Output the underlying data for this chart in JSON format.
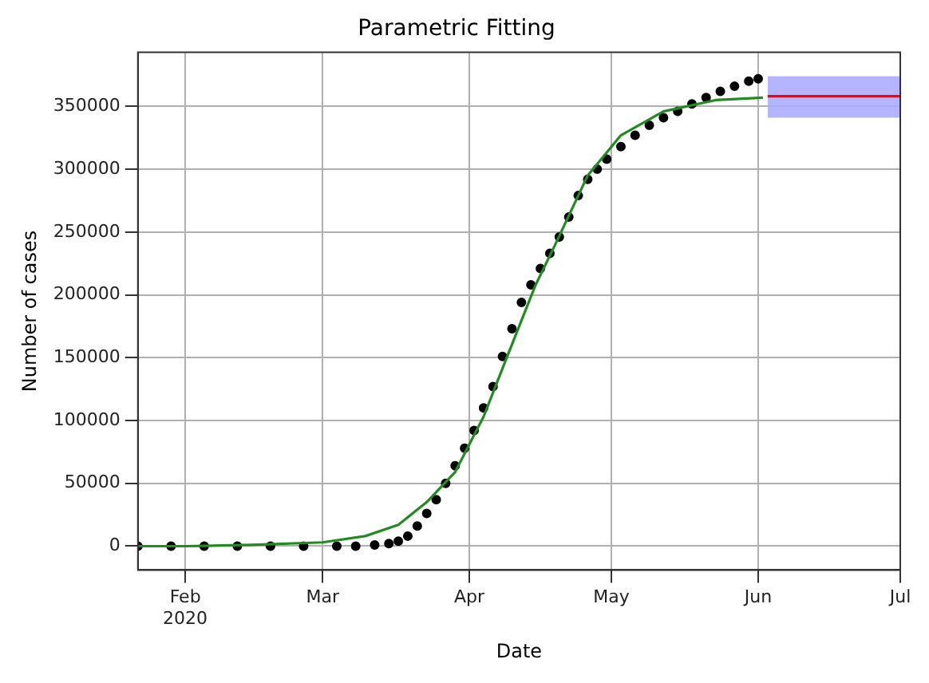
{
  "chart_data": {
    "type": "scatter",
    "title": "Parametric Fitting",
    "xlabel": "Date",
    "ylabel": "Number of cases",
    "xlim": [
      "2020-01-22",
      "2020-07-01"
    ],
    "xticks": [
      {
        "value": "2020-02-01",
        "label": "Feb\n2020"
      },
      {
        "value": "2020-03-01",
        "label": "Mar"
      },
      {
        "value": "2020-04-01",
        "label": "Apr"
      },
      {
        "value": "2020-05-01",
        "label": "May"
      },
      {
        "value": "2020-06-01",
        "label": "Jun"
      },
      {
        "value": "2020-07-01",
        "label": "Jul"
      }
    ],
    "ylim": [
      -19000,
      393000
    ],
    "yticks": [
      0,
      50000,
      100000,
      150000,
      200000,
      250000,
      300000,
      350000
    ],
    "grid": true,
    "legend": false,
    "marker": "circle",
    "series": [
      {
        "type": "scatter",
        "color": "#000000",
        "x": [
          "2020-01-22",
          "2020-01-29",
          "2020-02-05",
          "2020-02-12",
          "2020-02-19",
          "2020-02-26",
          "2020-03-04",
          "2020-03-08",
          "2020-03-12",
          "2020-03-15",
          "2020-03-17",
          "2020-03-19",
          "2020-03-21",
          "2020-03-23",
          "2020-03-25",
          "2020-03-27",
          "2020-03-29",
          "2020-03-31",
          "2020-04-02",
          "2020-04-04",
          "2020-04-06",
          "2020-04-08",
          "2020-04-10",
          "2020-04-12",
          "2020-04-14",
          "2020-04-16",
          "2020-04-18",
          "2020-04-20",
          "2020-04-22",
          "2020-04-24",
          "2020-04-26",
          "2020-04-28",
          "2020-04-30",
          "2020-05-03",
          "2020-05-06",
          "2020-05-09",
          "2020-05-12",
          "2020-05-15",
          "2020-05-18",
          "2020-05-21",
          "2020-05-24",
          "2020-05-27",
          "2020-05-30",
          "2020-06-01"
        ],
        "values": [
          0,
          0,
          0,
          0,
          0,
          0,
          0,
          0,
          1000,
          2000,
          4000,
          8000,
          16000,
          26000,
          37000,
          50000,
          64000,
          78000,
          92000,
          110000,
          127000,
          151000,
          173000,
          194000,
          208000,
          221000,
          233000,
          246000,
          262000,
          279000,
          292000,
          300000,
          308000,
          318000,
          327000,
          335000,
          341000,
          346000,
          352000,
          357000,
          362000,
          366000,
          370000,
          372000
        ]
      },
      {
        "type": "line",
        "marker": "none",
        "color": "#228b22",
        "x": [
          "2020-01-22",
          "2020-02-01",
          "2020-02-15",
          "2020-03-01",
          "2020-03-10",
          "2020-03-17",
          "2020-03-23",
          "2020-03-29",
          "2020-04-04",
          "2020-04-09",
          "2020-04-15",
          "2020-04-19",
          "2020-04-26",
          "2020-05-03",
          "2020-05-12",
          "2020-05-23",
          "2020-06-02"
        ],
        "values": [
          0,
          0,
          1000,
          3000,
          8000,
          17000,
          35000,
          59000,
          103000,
          151000,
          208000,
          239000,
          295000,
          327000,
          346000,
          355000,
          357000
        ]
      },
      {
        "type": "area",
        "color": "#aaaaff",
        "x": [
          "2020-06-03",
          "2020-07-01"
        ],
        "values": [
          null,
          null
        ],
        "lower": [
          341000,
          341000
        ],
        "upper": [
          374000,
          374000
        ]
      },
      {
        "type": "line",
        "marker": "none",
        "color": "#ff0000",
        "x": [
          "2020-06-03",
          "2020-07-01"
        ],
        "values": [
          358000,
          358000
        ]
      }
    ]
  }
}
